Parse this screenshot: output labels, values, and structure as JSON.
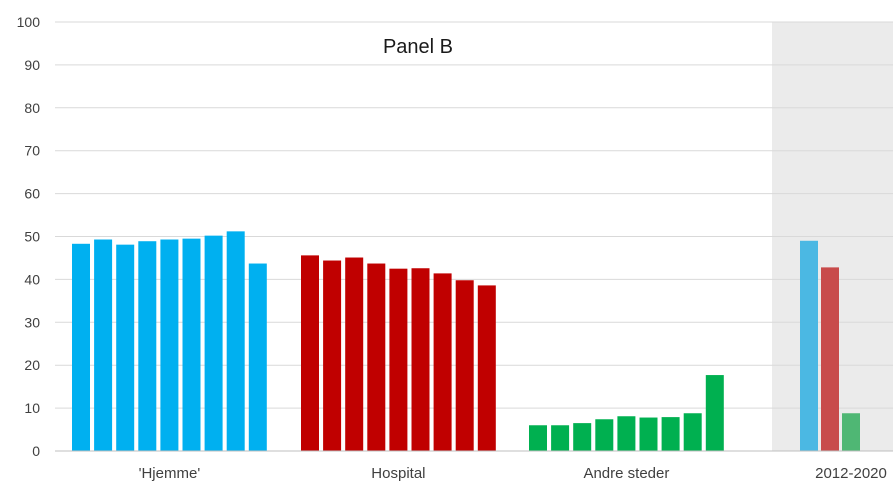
{
  "chart_data": {
    "type": "bar",
    "title": "Panel B",
    "xlabel": "",
    "ylabel": "",
    "ylim": [
      0,
      100
    ],
    "yticks": [
      0,
      10,
      20,
      30,
      40,
      50,
      60,
      70,
      80,
      90,
      100
    ],
    "grid": true,
    "groups": [
      {
        "label": "'Hjemme'",
        "color": "#00B0F0",
        "values": [
          48.3,
          49.3,
          48.1,
          48.9,
          49.3,
          49.5,
          50.2,
          51.2,
          43.7
        ]
      },
      {
        "label": "Hospital",
        "color": "#C00000",
        "values": [
          45.6,
          44.4,
          45.1,
          43.7,
          42.5,
          42.6,
          41.4,
          39.8,
          38.6
        ]
      },
      {
        "label": "Andre steder",
        "color": "#00B050",
        "values": [
          6.0,
          6.0,
          6.5,
          7.4,
          8.1,
          7.8,
          7.9,
          8.8,
          17.7
        ]
      }
    ],
    "summary": {
      "label": "2012-2020",
      "background": "#EBEBEB",
      "values": [
        49.0,
        42.8,
        8.8
      ],
      "colors": [
        "#4BB8E3",
        "#C84B4B",
        "#4FB774"
      ]
    }
  }
}
